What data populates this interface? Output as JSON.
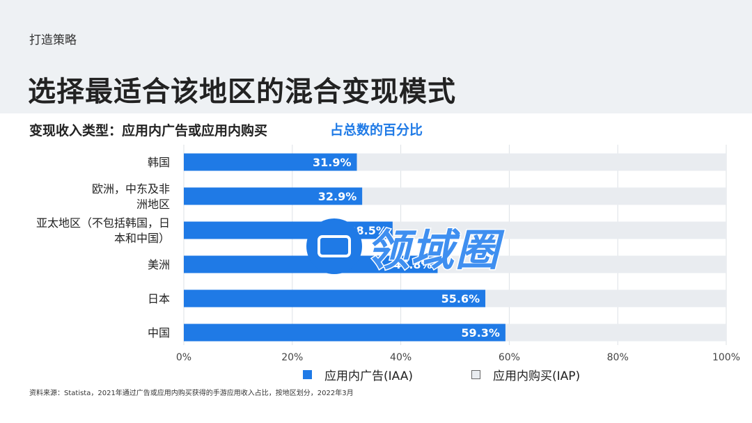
{
  "header": {
    "section_label": "打造策略",
    "title": "选择最适合该地区的混合变现模式"
  },
  "chart_header": {
    "subtitle": "变现收入类型：应用内广告或应用内购买",
    "unit_label": "占总数的百分比"
  },
  "chart_data": {
    "type": "bar",
    "orientation": "horizontal",
    "stacked": true,
    "categories": [
      [
        "韩国"
      ],
      [
        "欧洲，中东及非",
        "洲地区"
      ],
      [
        "亚太地区（不包括韩国，日",
        "本和中国）"
      ],
      [
        "美洲"
      ],
      [
        "日本"
      ],
      [
        "中国"
      ]
    ],
    "series": [
      {
        "name": "应用内广告(IAA)",
        "values": [
          31.9,
          32.9,
          38.5,
          46.8,
          55.6,
          59.3
        ],
        "color": "#1f7ae6"
      },
      {
        "name": "应用内购买(IAP)",
        "values": [
          68.1,
          67.1,
          61.5,
          53.2,
          44.4,
          40.7
        ],
        "color": "#e9ecf0"
      }
    ],
    "data_labels": [
      "31.9%",
      "32.9%",
      "38.5%",
      "46.8%",
      "55.6%",
      "59.3%"
    ],
    "x_ticks": [
      0,
      20,
      40,
      60,
      80,
      100
    ],
    "x_tick_labels": [
      "0%",
      "20%",
      "40%",
      "60%",
      "80%",
      "100%"
    ],
    "xlim": [
      0,
      100
    ],
    "grid": true,
    "legend_position": "bottom"
  },
  "footer": {
    "source": "资料来源：Statista，2021年通过广告或应用内购买获得的手游应用收入占比，按地区划分，2022年3月"
  },
  "watermark": {
    "text": "领域圈"
  }
}
